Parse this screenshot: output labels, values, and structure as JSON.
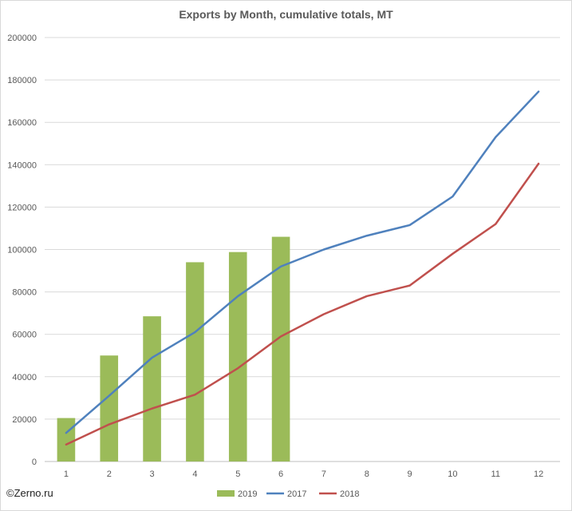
{
  "chart_data": {
    "type": "bar",
    "title": "Exports by Month, cumulative totals, MT",
    "xlabel": "",
    "ylabel": "",
    "categories": [
      "1",
      "2",
      "3",
      "4",
      "5",
      "6",
      "7",
      "8",
      "9",
      "10",
      "11",
      "12"
    ],
    "ylim": [
      0,
      200000
    ],
    "yticks": [
      0,
      20000,
      40000,
      60000,
      80000,
      100000,
      120000,
      140000,
      160000,
      180000,
      200000
    ],
    "grid": true,
    "legend_position": "bottom",
    "series": [
      {
        "name": "2019",
        "type": "bar",
        "color": "#9bbb59",
        "values": [
          20500,
          50000,
          68500,
          94000,
          98800,
          106000,
          null,
          null,
          null,
          null,
          null,
          null
        ]
      },
      {
        "name": "2017",
        "type": "line",
        "color": "#4f81bd",
        "values": [
          13500,
          31000,
          49000,
          61000,
          78000,
          92000,
          100000,
          106500,
          111500,
          125000,
          153000,
          174500
        ]
      },
      {
        "name": "2018",
        "type": "line",
        "color": "#c0504d",
        "values": [
          8000,
          17500,
          25000,
          31500,
          44000,
          59000,
          69500,
          78000,
          83000,
          98000,
          112000,
          140500
        ]
      }
    ]
  },
  "watermark": "©Zerno.ru"
}
